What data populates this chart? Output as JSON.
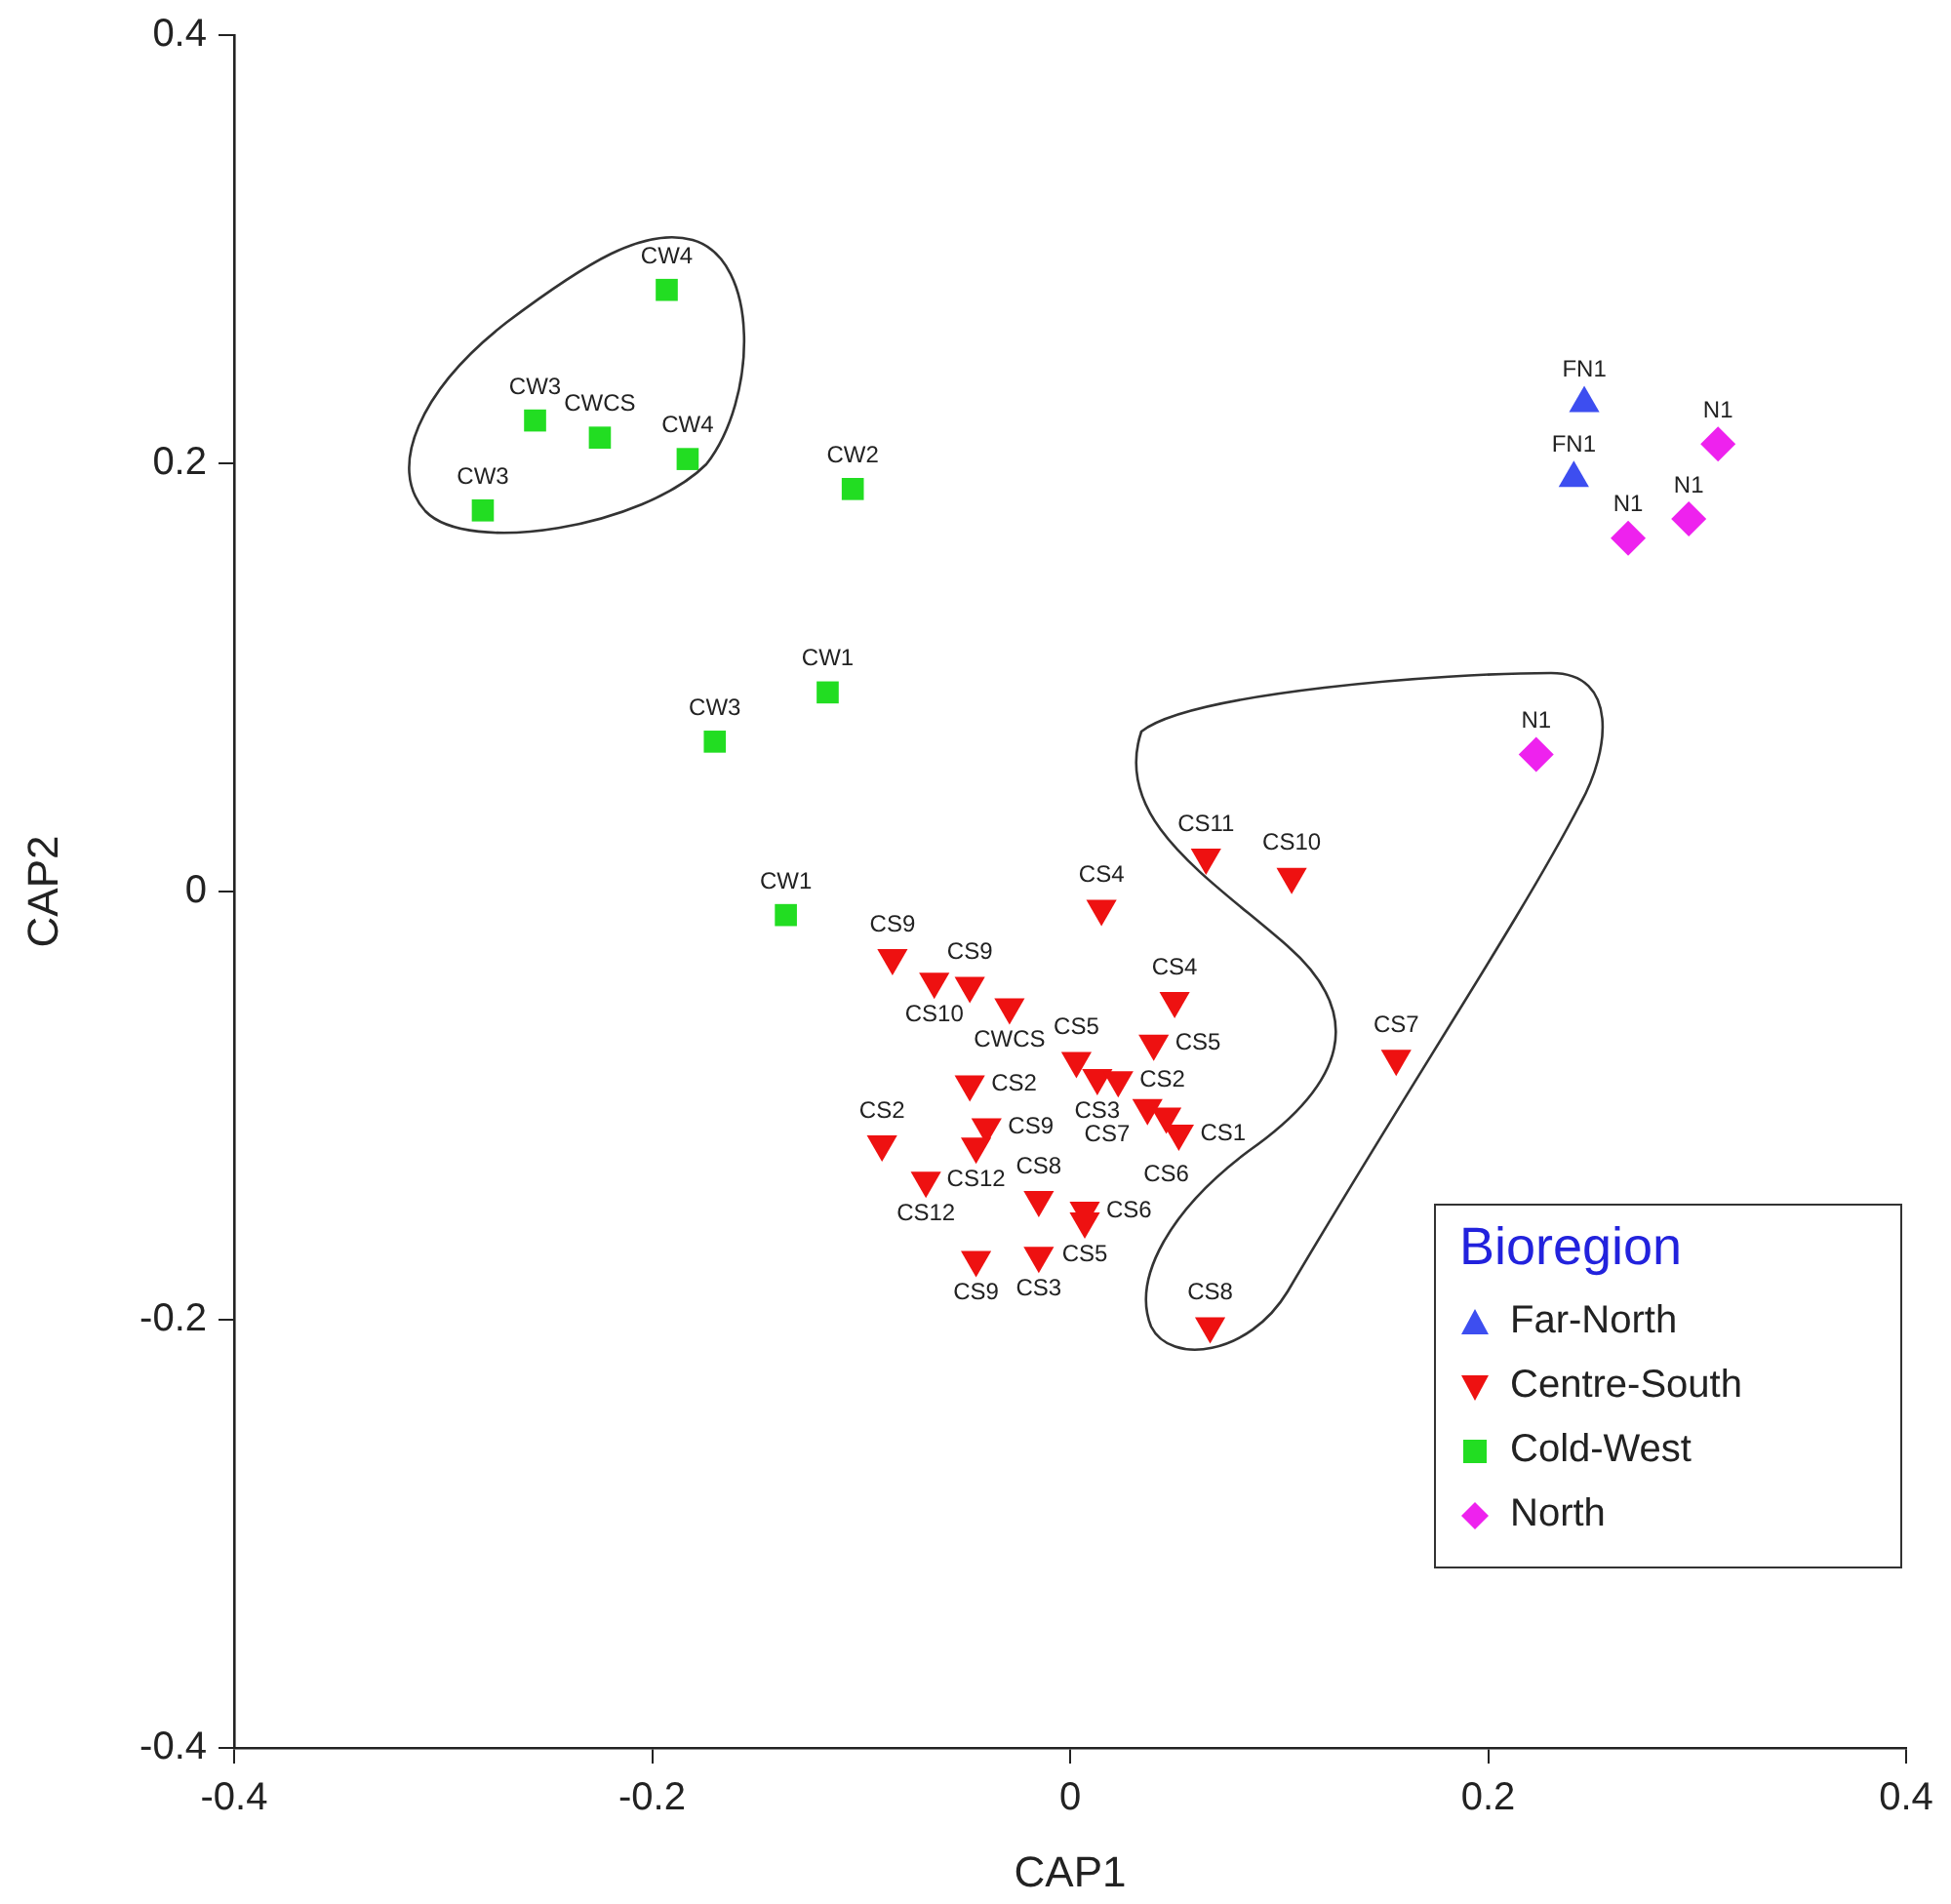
{
  "chart_data": {
    "type": "scatter",
    "xlabel": "CAP1",
    "ylabel": "CAP2",
    "legend_title": "Bioregion",
    "legend": "bottom right",
    "grid": false,
    "xlim": [
      -0.4,
      0.4
    ],
    "xticks": [
      -0.4,
      -0.2,
      0,
      0.2,
      0.4
    ],
    "ylim": [
      -0.4,
      0.4
    ],
    "yticks": [
      -0.4,
      -0.2,
      0,
      0.2,
      0.4
    ],
    "series": [
      {
        "name": "Far-North",
        "color": "#3d4ef0",
        "marker": "triangle",
        "x": [
          0.246,
          0.241
        ],
        "values": [
          0.228,
          0.193
        ],
        "value_labels": [
          "FN1",
          "FN1"
        ]
      },
      {
        "name": "Centre-South",
        "color": "#ee1111",
        "marker": "triangle_down",
        "x": [
          0.015,
          -0.085,
          -0.065,
          -0.048,
          -0.029,
          0.05,
          0.04,
          0.003,
          0.013,
          0.023,
          -0.048,
          0.037,
          0.046,
          0.052,
          -0.04,
          -0.045,
          -0.09,
          -0.069,
          -0.015,
          0.007,
          0.007,
          -0.045,
          -0.015,
          0.067,
          0.065,
          0.106,
          0.156
        ],
        "values": [
          -0.008,
          -0.031,
          -0.042,
          -0.044,
          -0.054,
          -0.051,
          -0.071,
          -0.079,
          -0.087,
          -0.088,
          -0.09,
          -0.101,
          -0.105,
          -0.113,
          -0.11,
          -0.119,
          -0.118,
          -0.135,
          -0.144,
          -0.149,
          -0.154,
          -0.172,
          -0.17,
          -0.203,
          0.016,
          0.007,
          -0.078
        ],
        "value_labels": [
          "CS4",
          "CS9",
          "CS10",
          "CS9",
          "CWCS",
          "CS4",
          "CS5",
          "CS5",
          "CS3",
          "CS2",
          "CS2",
          "CS7",
          "CS6",
          "CS1",
          "CS9",
          "CS12",
          "CS2",
          "CS12",
          "CS8",
          "CS6",
          "CS5",
          "CS9",
          "CS3",
          "CS8",
          "CS11",
          "CS10",
          "CS7"
        ]
      },
      {
        "name": "Cold-West",
        "color": "#22dd22",
        "marker": "square",
        "x": [
          -0.193,
          -0.256,
          -0.225,
          -0.183,
          -0.281,
          -0.104,
          -0.116,
          -0.17,
          -0.136
        ],
        "values": [
          0.281,
          0.22,
          0.212,
          0.202,
          0.178,
          0.188,
          0.093,
          0.07,
          -0.011
        ],
        "value_labels": [
          "CW4",
          "CW3",
          "CWCS",
          "CW4",
          "CW3",
          "CW2",
          "CW1",
          "CW3",
          "CW1"
        ]
      },
      {
        "name": "North",
        "color": "#ee22ee",
        "marker": "diamond",
        "x": [
          0.31,
          0.296,
          0.267,
          0.223
        ],
        "values": [
          0.209,
          0.174,
          0.165,
          0.064
        ],
        "value_labels": [
          "N1",
          "N1",
          "N1",
          "N1"
        ]
      }
    ]
  }
}
